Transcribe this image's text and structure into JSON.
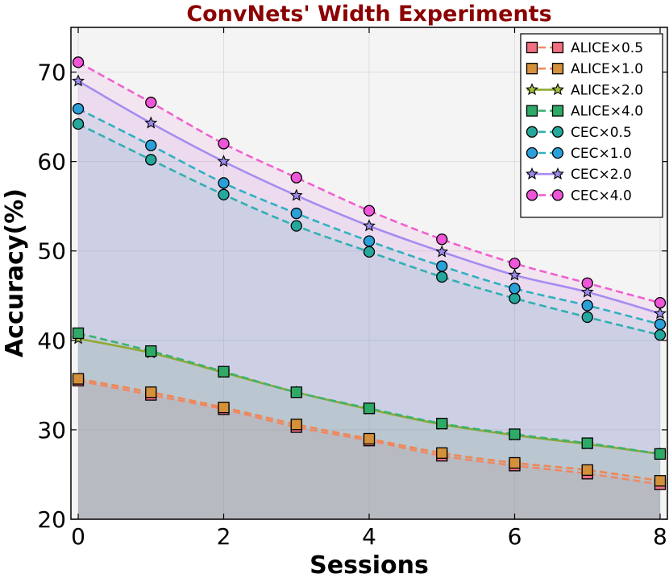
{
  "chart_data": {
    "type": "line",
    "title": "ConvNets' Width Experiments",
    "xlabel": "Sessions",
    "ylabel": "Accuracy(%)",
    "xlim": [
      -0.1,
      8.1
    ],
    "ylim": [
      20,
      75
    ],
    "xticks": [
      0,
      2,
      4,
      6,
      8
    ],
    "yticks": [
      20,
      30,
      40,
      50,
      60,
      70
    ],
    "grid": true,
    "legend_position": "top-right",
    "x": [
      0,
      1,
      2,
      3,
      4,
      5,
      6,
      7,
      8
    ],
    "series": [
      {
        "name": "ALICE×0.5",
        "marker": "square",
        "line": "dashed",
        "color": "#ee8866",
        "marker_color": "#f07080",
        "values": [
          35.5,
          33.9,
          32.3,
          30.3,
          28.8,
          27.1,
          26.0,
          25.1,
          23.9
        ]
      },
      {
        "name": "ALICE×1.0",
        "marker": "square",
        "line": "dashed",
        "color": "#ee8855",
        "marker_color": "#d4913a",
        "values": [
          35.7,
          34.2,
          32.5,
          30.6,
          29.0,
          27.4,
          26.3,
          25.5,
          24.3
        ]
      },
      {
        "name": "ALICE×2.0",
        "marker": "star",
        "line": "solid",
        "color": "#8fa830",
        "marker_color": "#a8c040",
        "values": [
          40.2,
          38.6,
          36.4,
          34.2,
          32.3,
          30.6,
          29.4,
          28.4,
          27.3
        ]
      },
      {
        "name": "ALICE×4.0",
        "marker": "square",
        "line": "dashed",
        "color": "#3cb371",
        "marker_color": "#2eaa66",
        "values": [
          40.8,
          38.8,
          36.5,
          34.2,
          32.4,
          30.7,
          29.5,
          28.5,
          27.3
        ]
      },
      {
        "name": "CEC×0.5",
        "marker": "circle",
        "line": "dashed",
        "color": "#30b0b0",
        "marker_color": "#25a89c",
        "values": [
          64.2,
          60.2,
          56.3,
          52.8,
          49.9,
          47.1,
          44.7,
          42.6,
          40.6
        ]
      },
      {
        "name": "CEC×1.0",
        "marker": "circle",
        "line": "dashed",
        "color": "#30b0c0",
        "marker_color": "#2aa0d8",
        "values": [
          65.9,
          61.8,
          57.6,
          54.2,
          51.1,
          48.3,
          45.8,
          43.9,
          41.8
        ]
      },
      {
        "name": "CEC×2.0",
        "marker": "star",
        "line": "solid",
        "color": "#a68cf0",
        "marker_color": "#9a8ce8",
        "values": [
          69.0,
          64.3,
          60.0,
          56.2,
          52.8,
          49.9,
          47.3,
          45.4,
          43.0
        ]
      },
      {
        "name": "CEC×4.0",
        "marker": "circle",
        "line": "dashed",
        "color": "#f060d0",
        "marker_color": "#ee55d8",
        "values": [
          71.1,
          66.6,
          62.0,
          58.2,
          54.5,
          51.3,
          48.6,
          46.4,
          44.2
        ]
      }
    ]
  }
}
